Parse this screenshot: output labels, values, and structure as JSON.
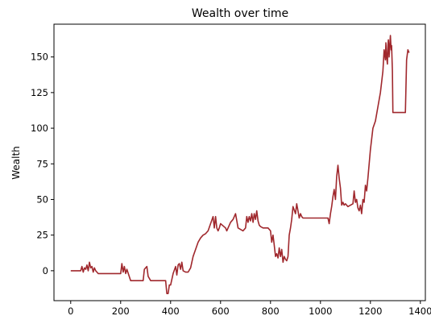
{
  "chart_data": {
    "type": "line",
    "title": "Wealth over time",
    "xlabel": "",
    "ylabel": "Wealth",
    "xlim": [
      -67,
      1420
    ],
    "ylim": [
      -21,
      173
    ],
    "xticks": [
      0,
      200,
      400,
      600,
      800,
      1000,
      1200,
      1400
    ],
    "yticks": [
      0,
      25,
      50,
      75,
      100,
      125,
      150
    ],
    "grid": false,
    "legend": "none",
    "series": [
      {
        "color": "#a0282d",
        "x": [
          0,
          40,
          45,
          50,
          55,
          60,
          65,
          70,
          75,
          80,
          85,
          90,
          95,
          100,
          110,
          200,
          205,
          210,
          215,
          220,
          225,
          240,
          290,
          295,
          300,
          305,
          310,
          320,
          380,
          385,
          390,
          395,
          400,
          410,
          420,
          425,
          430,
          435,
          440,
          445,
          450,
          460,
          470,
          480,
          490,
          500,
          510,
          520,
          530,
          540,
          550,
          560,
          570,
          575,
          580,
          585,
          590,
          595,
          600,
          620,
          625,
          630,
          640,
          650,
          660,
          670,
          690,
          700,
          705,
          710,
          715,
          720,
          725,
          730,
          735,
          740,
          745,
          750,
          755,
          760,
          770,
          790,
          800,
          805,
          810,
          815,
          820,
          825,
          830,
          835,
          840,
          845,
          850,
          855,
          860,
          865,
          870,
          875,
          880,
          885,
          890,
          900,
          905,
          910,
          915,
          920,
          925,
          930,
          935,
          940,
          1030,
          1035,
          1040,
          1045,
          1050,
          1055,
          1060,
          1065,
          1070,
          1075,
          1080,
          1085,
          1090,
          1095,
          1100,
          1110,
          1130,
          1135,
          1140,
          1145,
          1150,
          1155,
          1160,
          1165,
          1170,
          1175,
          1180,
          1185,
          1190,
          1200,
          1210,
          1220,
          1230,
          1240,
          1250,
          1255,
          1260,
          1262,
          1265,
          1268,
          1270,
          1272,
          1275,
          1278,
          1280,
          1283,
          1285,
          1288,
          1290,
          1295,
          1340,
          1345,
          1350,
          1355
        ],
        "y": [
          0,
          0,
          3,
          -1,
          2,
          1,
          4,
          0,
          6,
          2,
          3,
          -1,
          2,
          0,
          -2,
          -2,
          5,
          -1,
          3,
          -2,
          1,
          -7,
          -7,
          1,
          2,
          3,
          -4,
          -7,
          -7,
          -16,
          -16,
          -10,
          -10,
          -2,
          3,
          -3,
          4,
          5,
          1,
          6,
          0,
          -1,
          -1,
          2,
          10,
          15,
          20,
          23,
          25,
          26,
          28,
          33,
          38,
          30,
          38,
          30,
          28,
          30,
          33,
          30,
          28,
          30,
          34,
          36,
          40,
          30,
          28,
          30,
          38,
          34,
          38,
          35,
          40,
          34,
          40,
          36,
          42,
          35,
          32,
          31,
          30,
          30,
          28,
          20,
          25,
          18,
          10,
          12,
          9,
          16,
          10,
          15,
          6,
          10,
          8,
          7,
          10,
          25,
          30,
          36,
          45,
          40,
          47,
          42,
          37,
          40,
          38,
          37,
          37,
          37,
          37,
          33,
          40,
          45,
          52,
          57,
          50,
          66,
          74,
          65,
          58,
          46,
          48,
          46,
          47,
          45,
          47,
          56,
          48,
          50,
          44,
          42,
          46,
          40,
          50,
          48,
          60,
          56,
          65,
          85,
          100,
          105,
          115,
          125,
          140,
          155,
          148,
          160,
          150,
          145,
          158,
          162,
          150,
          160,
          165,
          155,
          158,
          140,
          111,
          111,
          111,
          148,
          155,
          153
        ]
      }
    ]
  }
}
